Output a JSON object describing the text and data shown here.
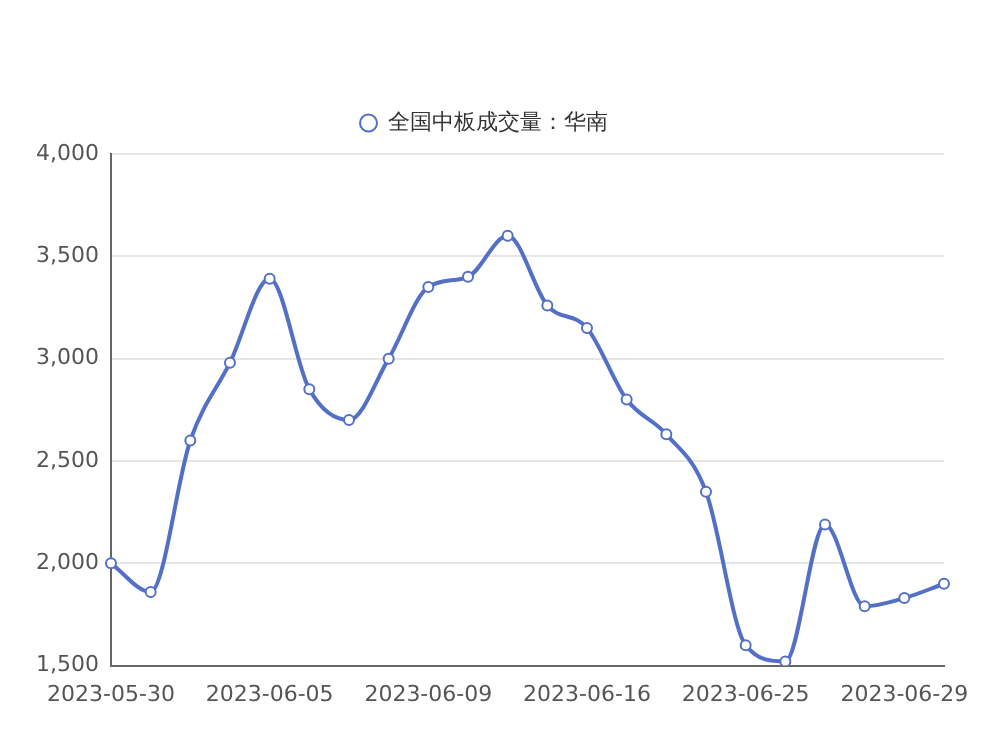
{
  "chart_data": {
    "type": "line",
    "categories": [
      "2023-05-30",
      null,
      null,
      null,
      "2023-06-05",
      null,
      null,
      null,
      "2023-06-09",
      null,
      null,
      null,
      "2023-06-16",
      null,
      null,
      null,
      "2023-06-25",
      null,
      null,
      null,
      "2023-06-29",
      null
    ],
    "series": [
      {
        "name": "全国中板成交量：华南",
        "color": "#5470c6",
        "values": [
          2000,
          1860,
          2600,
          2980,
          3390,
          2850,
          2700,
          3000,
          3350,
          3400,
          3600,
          3260,
          3150,
          2800,
          2630,
          2350,
          1600,
          1520,
          2190,
          1790,
          1830,
          1900
        ]
      }
    ],
    "ylim": [
      1500,
      4000
    ],
    "yticks": [
      {
        "value": 1500,
        "label": "1,500"
      },
      {
        "value": 2000,
        "label": "2,000"
      },
      {
        "value": 2500,
        "label": "2,500"
      },
      {
        "value": 3000,
        "label": "3,000"
      },
      {
        "value": 3500,
        "label": "3,500"
      },
      {
        "value": 4000,
        "label": "4,000"
      }
    ],
    "grid": "y",
    "legend": "top",
    "marker": "circle",
    "line_style": "solid"
  }
}
